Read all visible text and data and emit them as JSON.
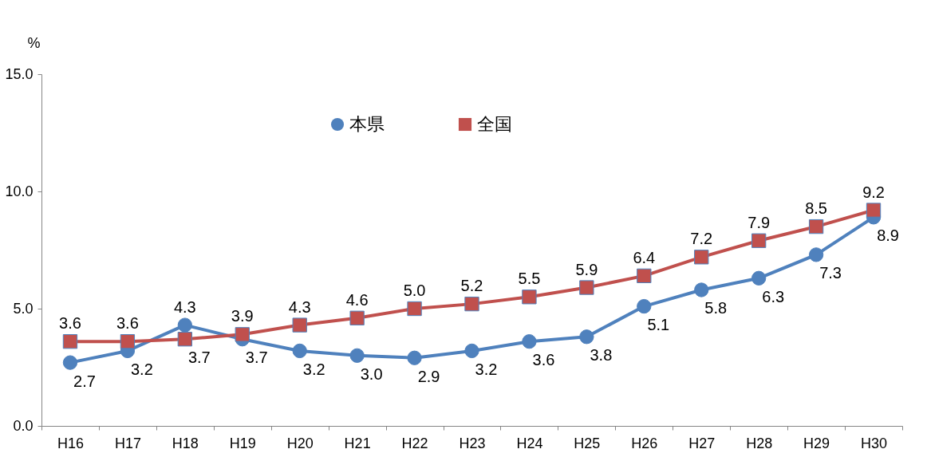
{
  "chart_data": {
    "type": "line",
    "ylabel": "%",
    "categories": [
      "H16",
      "H17",
      "H18",
      "H19",
      "H20",
      "H21",
      "H22",
      "H23",
      "H24",
      "H25",
      "H26",
      "H27",
      "H28",
      "H29",
      "H30"
    ],
    "series": [
      {
        "name": "本県",
        "color": "#4f81bd",
        "marker": "circle",
        "values": [
          2.7,
          3.2,
          4.3,
          3.7,
          3.2,
          3.0,
          2.9,
          3.2,
          3.6,
          3.8,
          5.1,
          5.8,
          6.3,
          7.3,
          8.9
        ],
        "value_labels": [
          "2.7",
          "3.2",
          "4.3",
          "3.7",
          "3.2",
          "3.0",
          "2.9",
          "3.2",
          "3.6",
          "3.8",
          "5.1",
          "5.8",
          "6.3",
          "7.3",
          "8.9"
        ]
      },
      {
        "name": "全国",
        "color": "#c0504d",
        "marker": "square",
        "values": [
          3.6,
          3.6,
          3.7,
          3.9,
          4.3,
          4.6,
          5.0,
          5.2,
          5.5,
          5.9,
          6.4,
          7.2,
          7.9,
          8.5,
          9.2
        ],
        "value_labels": [
          "3.6",
          "3.6",
          "3.7",
          "3.9",
          "4.3",
          "4.6",
          "5.0",
          "5.2",
          "5.5",
          "5.9",
          "6.4",
          "7.2",
          "7.9",
          "8.5",
          "9.2"
        ]
      }
    ],
    "ylim": [
      0,
      15
    ],
    "yticks": [
      {
        "value": 0,
        "label": "0.0"
      },
      {
        "value": 5,
        "label": "5.0"
      },
      {
        "value": 10,
        "label": "10.0"
      },
      {
        "value": 15,
        "label": "15.0"
      }
    ],
    "legend": "top",
    "grid": false,
    "line_style": "solid"
  }
}
